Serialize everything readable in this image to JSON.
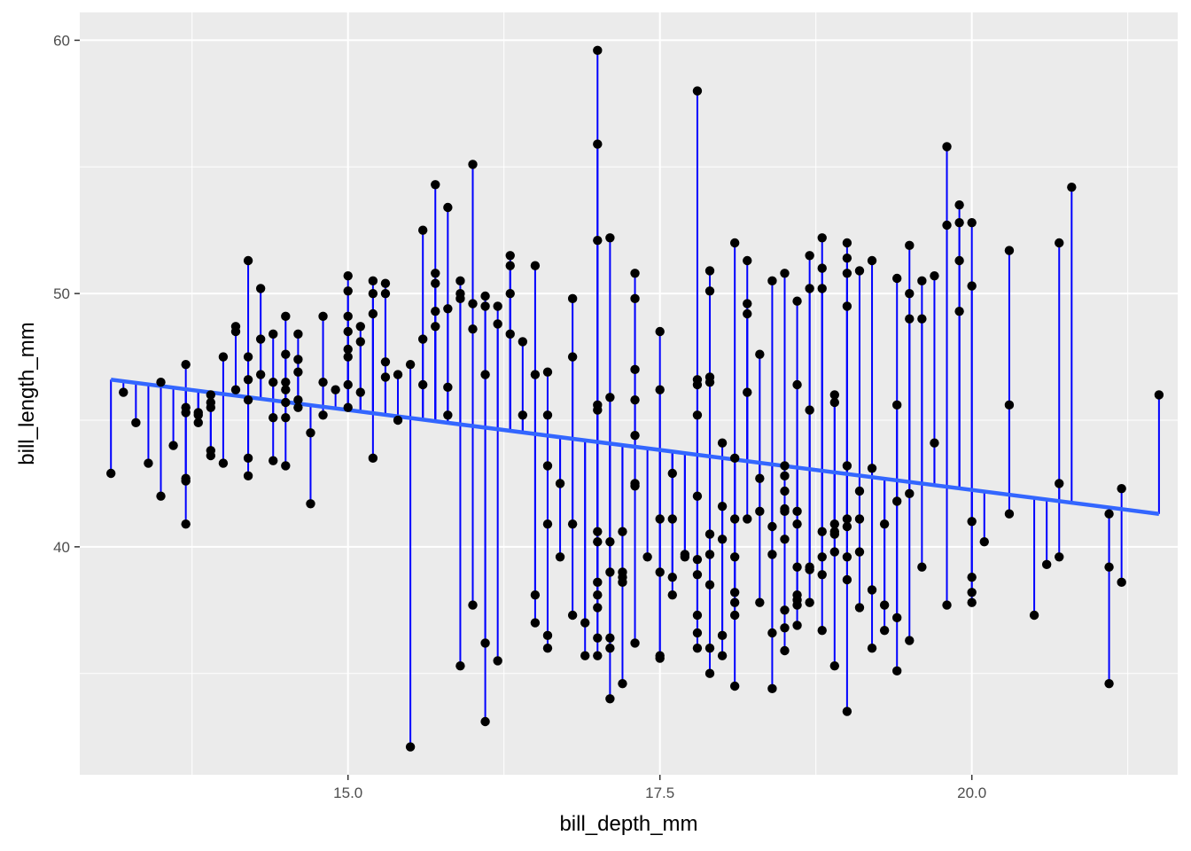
{
  "chart_data": {
    "type": "scatter",
    "title": "",
    "xlabel": "bill_depth_mm",
    "ylabel": "bill_length_mm",
    "xlim": [
      12.85,
      21.65
    ],
    "ylim": [
      31.0,
      61.1
    ],
    "x_ticks": [
      15.0,
      17.5,
      20.0
    ],
    "x_tick_labels": [
      "15.0",
      "17.5",
      "20.0"
    ],
    "y_ticks": [
      40,
      50,
      60
    ],
    "y_tick_labels": [
      "40",
      "50",
      "60"
    ],
    "grid": true,
    "legend": "none",
    "colors": {
      "panel": "#ebebeb",
      "grid": "#ffffff",
      "points": "#000000",
      "segments": "#0000ff",
      "fit_line": "#3366ff"
    },
    "fit_line": {
      "x": [
        13.1,
        21.5
      ],
      "y": [
        46.6,
        41.3
      ]
    },
    "points": [
      [
        13.1,
        42.9
      ],
      [
        13.2,
        46.1
      ],
      [
        13.3,
        44.9
      ],
      [
        13.4,
        43.3
      ],
      [
        13.5,
        46.5
      ],
      [
        13.5,
        42.0
      ],
      [
        13.6,
        44.0
      ],
      [
        13.7,
        47.2
      ],
      [
        13.7,
        45.5
      ],
      [
        13.7,
        45.3
      ],
      [
        13.7,
        42.7
      ],
      [
        13.7,
        42.6
      ],
      [
        13.7,
        40.9
      ],
      [
        13.8,
        45.3
      ],
      [
        13.8,
        45.2
      ],
      [
        13.8,
        44.9
      ],
      [
        13.9,
        46.0
      ],
      [
        13.9,
        45.7
      ],
      [
        13.9,
        45.5
      ],
      [
        13.9,
        43.8
      ],
      [
        13.9,
        43.6
      ],
      [
        14.0,
        47.5
      ],
      [
        14.0,
        43.3
      ],
      [
        14.1,
        48.7
      ],
      [
        14.1,
        48.5
      ],
      [
        14.1,
        46.2
      ],
      [
        14.2,
        51.3
      ],
      [
        14.2,
        47.5
      ],
      [
        14.2,
        46.6
      ],
      [
        14.2,
        45.8
      ],
      [
        14.2,
        43.5
      ],
      [
        14.2,
        42.8
      ],
      [
        14.3,
        50.2
      ],
      [
        14.3,
        48.2
      ],
      [
        14.3,
        46.8
      ],
      [
        14.4,
        48.4
      ],
      [
        14.4,
        46.5
      ],
      [
        14.4,
        45.1
      ],
      [
        14.4,
        43.4
      ],
      [
        14.5,
        49.1
      ],
      [
        14.5,
        47.6
      ],
      [
        14.5,
        46.5
      ],
      [
        14.5,
        46.2
      ],
      [
        14.5,
        45.7
      ],
      [
        14.5,
        45.1
      ],
      [
        14.5,
        43.2
      ],
      [
        14.6,
        48.4
      ],
      [
        14.6,
        47.4
      ],
      [
        14.6,
        46.9
      ],
      [
        14.6,
        45.8
      ],
      [
        14.6,
        45.5
      ],
      [
        14.7,
        44.5
      ],
      [
        14.7,
        41.7
      ],
      [
        14.8,
        49.1
      ],
      [
        14.8,
        46.5
      ],
      [
        14.8,
        45.2
      ],
      [
        14.9,
        46.2
      ],
      [
        15.0,
        50.7
      ],
      [
        15.0,
        50.1
      ],
      [
        15.0,
        49.1
      ],
      [
        15.0,
        48.5
      ],
      [
        15.0,
        47.8
      ],
      [
        15.0,
        47.5
      ],
      [
        15.0,
        46.4
      ],
      [
        15.0,
        45.5
      ],
      [
        15.1,
        48.7
      ],
      [
        15.1,
        48.1
      ],
      [
        15.1,
        46.1
      ],
      [
        15.2,
        50.5
      ],
      [
        15.2,
        50.0
      ],
      [
        15.2,
        49.2
      ],
      [
        15.2,
        43.5
      ],
      [
        15.3,
        50.4
      ],
      [
        15.3,
        50.0
      ],
      [
        15.3,
        47.3
      ],
      [
        15.3,
        46.7
      ],
      [
        15.4,
        46.8
      ],
      [
        15.4,
        45.0
      ],
      [
        15.5,
        47.2
      ],
      [
        15.5,
        32.1
      ],
      [
        15.6,
        52.5
      ],
      [
        15.6,
        48.2
      ],
      [
        15.6,
        46.4
      ],
      [
        15.7,
        54.3
      ],
      [
        15.7,
        50.8
      ],
      [
        15.7,
        50.4
      ],
      [
        15.7,
        49.3
      ],
      [
        15.7,
        48.7
      ],
      [
        15.8,
        53.4
      ],
      [
        15.8,
        49.4
      ],
      [
        15.8,
        46.3
      ],
      [
        15.8,
        45.2
      ],
      [
        15.9,
        50.5
      ],
      [
        15.9,
        50.0
      ],
      [
        15.9,
        49.8
      ],
      [
        15.9,
        35.3
      ],
      [
        16.0,
        55.1
      ],
      [
        16.0,
        49.6
      ],
      [
        16.0,
        48.6
      ],
      [
        16.0,
        37.7
      ],
      [
        16.1,
        49.9
      ],
      [
        16.1,
        49.5
      ],
      [
        16.1,
        46.8
      ],
      [
        16.1,
        36.2
      ],
      [
        16.1,
        33.1
      ],
      [
        16.2,
        49.5
      ],
      [
        16.2,
        48.8
      ],
      [
        16.2,
        35.5
      ],
      [
        16.3,
        51.5
      ],
      [
        16.3,
        51.1
      ],
      [
        16.3,
        50.0
      ],
      [
        16.3,
        48.4
      ],
      [
        16.4,
        48.1
      ],
      [
        16.4,
        45.2
      ],
      [
        16.5,
        51.1
      ],
      [
        16.5,
        46.8
      ],
      [
        16.5,
        38.1
      ],
      [
        16.5,
        37.0
      ],
      [
        16.6,
        46.9
      ],
      [
        16.6,
        45.2
      ],
      [
        16.6,
        43.2
      ],
      [
        16.6,
        40.9
      ],
      [
        16.6,
        36.5
      ],
      [
        16.6,
        36.0
      ],
      [
        16.7,
        42.5
      ],
      [
        16.7,
        39.6
      ],
      [
        16.8,
        49.8
      ],
      [
        16.8,
        47.5
      ],
      [
        16.8,
        40.9
      ],
      [
        16.8,
        37.3
      ],
      [
        16.9,
        37.0
      ],
      [
        16.9,
        35.7
      ],
      [
        17.0,
        59.6
      ],
      [
        17.0,
        55.9
      ],
      [
        17.0,
        52.1
      ],
      [
        17.0,
        45.6
      ],
      [
        17.0,
        45.4
      ],
      [
        17.0,
        40.6
      ],
      [
        17.0,
        40.2
      ],
      [
        17.0,
        38.6
      ],
      [
        17.0,
        38.1
      ],
      [
        17.0,
        37.6
      ],
      [
        17.0,
        36.4
      ],
      [
        17.0,
        35.7
      ],
      [
        17.1,
        52.2
      ],
      [
        17.1,
        45.9
      ],
      [
        17.1,
        40.2
      ],
      [
        17.1,
        39.0
      ],
      [
        17.1,
        36.4
      ],
      [
        17.1,
        36.0
      ],
      [
        17.1,
        34.0
      ],
      [
        17.2,
        40.6
      ],
      [
        17.2,
        39.0
      ],
      [
        17.2,
        38.8
      ],
      [
        17.2,
        38.6
      ],
      [
        17.2,
        34.6
      ],
      [
        17.3,
        50.8
      ],
      [
        17.3,
        49.8
      ],
      [
        17.3,
        47.0
      ],
      [
        17.3,
        45.8
      ],
      [
        17.3,
        44.4
      ],
      [
        17.3,
        42.5
      ],
      [
        17.3,
        42.4
      ],
      [
        17.3,
        36.2
      ],
      [
        17.4,
        39.6
      ],
      [
        17.5,
        48.5
      ],
      [
        17.5,
        46.2
      ],
      [
        17.5,
        41.1
      ],
      [
        17.5,
        39.0
      ],
      [
        17.5,
        35.7
      ],
      [
        17.5,
        35.6
      ],
      [
        17.6,
        42.9
      ],
      [
        17.6,
        41.1
      ],
      [
        17.6,
        38.8
      ],
      [
        17.6,
        38.1
      ],
      [
        17.7,
        39.7
      ],
      [
        17.7,
        39.6
      ],
      [
        17.8,
        58.0
      ],
      [
        17.8,
        46.6
      ],
      [
        17.8,
        46.4
      ],
      [
        17.8,
        45.2
      ],
      [
        17.8,
        42.0
      ],
      [
        17.8,
        39.5
      ],
      [
        17.8,
        38.9
      ],
      [
        17.8,
        37.3
      ],
      [
        17.8,
        36.6
      ],
      [
        17.8,
        36.0
      ],
      [
        17.9,
        50.9
      ],
      [
        17.9,
        50.1
      ],
      [
        17.9,
        46.7
      ],
      [
        17.9,
        46.5
      ],
      [
        17.9,
        40.5
      ],
      [
        17.9,
        39.7
      ],
      [
        17.9,
        38.5
      ],
      [
        17.9,
        36.0
      ],
      [
        17.9,
        35.0
      ],
      [
        18.0,
        44.1
      ],
      [
        18.0,
        41.6
      ],
      [
        18.0,
        40.3
      ],
      [
        18.0,
        36.5
      ],
      [
        18.0,
        35.7
      ],
      [
        18.1,
        52.0
      ],
      [
        18.1,
        43.5
      ],
      [
        18.1,
        41.1
      ],
      [
        18.1,
        39.6
      ],
      [
        18.1,
        38.2
      ],
      [
        18.1,
        37.8
      ],
      [
        18.1,
        37.3
      ],
      [
        18.1,
        34.5
      ],
      [
        18.2,
        51.3
      ],
      [
        18.2,
        49.6
      ],
      [
        18.2,
        49.2
      ],
      [
        18.2,
        46.1
      ],
      [
        18.2,
        41.1
      ],
      [
        18.3,
        47.6
      ],
      [
        18.3,
        42.7
      ],
      [
        18.3,
        41.4
      ],
      [
        18.3,
        37.8
      ],
      [
        18.4,
        50.5
      ],
      [
        18.4,
        40.8
      ],
      [
        18.4,
        39.7
      ],
      [
        18.4,
        36.6
      ],
      [
        18.4,
        34.4
      ],
      [
        18.5,
        50.8
      ],
      [
        18.5,
        43.2
      ],
      [
        18.5,
        42.8
      ],
      [
        18.5,
        42.2
      ],
      [
        18.5,
        41.5
      ],
      [
        18.5,
        41.4
      ],
      [
        18.5,
        40.3
      ],
      [
        18.5,
        37.5
      ],
      [
        18.5,
        36.8
      ],
      [
        18.5,
        35.9
      ],
      [
        18.6,
        49.7
      ],
      [
        18.6,
        46.4
      ],
      [
        18.6,
        41.4
      ],
      [
        18.6,
        40.9
      ],
      [
        18.6,
        39.2
      ],
      [
        18.6,
        38.1
      ],
      [
        18.6,
        37.9
      ],
      [
        18.6,
        37.7
      ],
      [
        18.6,
        36.9
      ],
      [
        18.7,
        51.5
      ],
      [
        18.7,
        50.2
      ],
      [
        18.7,
        45.4
      ],
      [
        18.7,
        39.2
      ],
      [
        18.7,
        39.1
      ],
      [
        18.7,
        37.8
      ],
      [
        18.8,
        52.2
      ],
      [
        18.8,
        51.0
      ],
      [
        18.8,
        50.2
      ],
      [
        18.8,
        40.6
      ],
      [
        18.8,
        39.6
      ],
      [
        18.8,
        38.9
      ],
      [
        18.8,
        36.7
      ],
      [
        18.9,
        46.0
      ],
      [
        18.9,
        45.7
      ],
      [
        18.9,
        40.9
      ],
      [
        18.9,
        40.6
      ],
      [
        18.9,
        40.5
      ],
      [
        18.9,
        39.8
      ],
      [
        18.9,
        35.3
      ],
      [
        19.0,
        52.0
      ],
      [
        19.0,
        51.4
      ],
      [
        19.0,
        50.8
      ],
      [
        19.0,
        49.5
      ],
      [
        19.0,
        43.2
      ],
      [
        19.0,
        41.1
      ],
      [
        19.0,
        40.8
      ],
      [
        19.0,
        39.6
      ],
      [
        19.0,
        38.7
      ],
      [
        19.0,
        33.5
      ],
      [
        19.1,
        50.9
      ],
      [
        19.1,
        42.2
      ],
      [
        19.1,
        41.1
      ],
      [
        19.1,
        39.8
      ],
      [
        19.1,
        37.6
      ],
      [
        19.2,
        51.3
      ],
      [
        19.2,
        43.1
      ],
      [
        19.2,
        38.3
      ],
      [
        19.2,
        36.0
      ],
      [
        19.3,
        40.9
      ],
      [
        19.3,
        37.7
      ],
      [
        19.3,
        36.7
      ],
      [
        19.4,
        50.6
      ],
      [
        19.4,
        45.6
      ],
      [
        19.4,
        41.8
      ],
      [
        19.4,
        37.2
      ],
      [
        19.4,
        35.1
      ],
      [
        19.5,
        51.9
      ],
      [
        19.5,
        50.0
      ],
      [
        19.5,
        49.0
      ],
      [
        19.5,
        42.1
      ],
      [
        19.5,
        36.3
      ],
      [
        19.6,
        50.5
      ],
      [
        19.6,
        49.0
      ],
      [
        19.6,
        39.2
      ],
      [
        19.7,
        50.7
      ],
      [
        19.7,
        44.1
      ],
      [
        19.8,
        55.8
      ],
      [
        19.8,
        52.7
      ],
      [
        19.8,
        37.7
      ],
      [
        19.9,
        53.5
      ],
      [
        19.9,
        52.8
      ],
      [
        19.9,
        51.3
      ],
      [
        19.9,
        49.3
      ],
      [
        20.0,
        52.8
      ],
      [
        20.0,
        50.3
      ],
      [
        20.0,
        41.0
      ],
      [
        20.0,
        38.8
      ],
      [
        20.0,
        38.2
      ],
      [
        20.0,
        37.8
      ],
      [
        20.1,
        40.2
      ],
      [
        20.3,
        51.7
      ],
      [
        20.3,
        45.6
      ],
      [
        20.3,
        41.3
      ],
      [
        20.5,
        37.3
      ],
      [
        20.6,
        39.3
      ],
      [
        20.7,
        52.0
      ],
      [
        20.7,
        42.5
      ],
      [
        20.7,
        39.6
      ],
      [
        20.8,
        54.2
      ],
      [
        21.1,
        41.3
      ],
      [
        21.1,
        39.2
      ],
      [
        21.1,
        34.6
      ],
      [
        21.2,
        42.3
      ],
      [
        21.2,
        38.6
      ],
      [
        21.5,
        46.0
      ]
    ]
  }
}
